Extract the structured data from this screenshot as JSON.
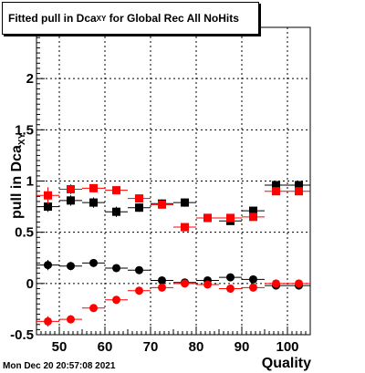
{
  "title_prefix": "Fitted pull in Dca",
  "title_sub": "XY",
  "title_suffix": " for Global Rec All NoHits",
  "timestamp": "Mon Dec 20 20:57:08 2021",
  "chart_data": {
    "type": "scatter",
    "xlabel": "Quality",
    "ylabel_main": "pull in Dca",
    "ylabel_sub": "XY",
    "xlim": [
      45,
      105
    ],
    "ylim": [
      -0.5,
      2.5
    ],
    "x_ticks": [
      50,
      60,
      70,
      80,
      90,
      100
    ],
    "y_ticks": [
      -0.5,
      0,
      0.5,
      1,
      1.5,
      2
    ],
    "y_tick_labels": [
      "-0.5",
      "0",
      "0.5",
      "1",
      "1.5",
      "2"
    ],
    "grid": true,
    "series": [
      {
        "marker": "square",
        "color": "#000000",
        "x": [
          47.5,
          52.5,
          57.5,
          62.5,
          67.5,
          72.5,
          77.5,
          82.5,
          87.5,
          92.5,
          97.5,
          102.5
        ],
        "y": [
          0.75,
          0.81,
          0.79,
          0.7,
          0.74,
          0.78,
          0.79,
          0.64,
          0.61,
          0.71,
          0.96,
          0.96
        ],
        "yerr": [
          0.05,
          0.05,
          0.05,
          0.05,
          0.04,
          0.04,
          0.04,
          0.02,
          0.02,
          0.02,
          0.01,
          0.01
        ]
      },
      {
        "marker": "square",
        "color": "#ff0000",
        "x": [
          47.5,
          52.5,
          57.5,
          62.5,
          67.5,
          72.5,
          77.5,
          82.5,
          87.5,
          92.5,
          97.5,
          102.5
        ],
        "y": [
          0.86,
          0.92,
          0.93,
          0.91,
          0.83,
          0.77,
          0.55,
          0.64,
          0.64,
          0.65,
          0.9,
          0.9
        ],
        "yerr": [
          0.08,
          0.05,
          0.04,
          0.04,
          0.03,
          0.03,
          0.02,
          0.02,
          0.02,
          0.02,
          0.01,
          0.01
        ]
      },
      {
        "marker": "circle",
        "color": "#000000",
        "x": [
          47.5,
          52.5,
          57.5,
          62.5,
          67.5,
          72.5,
          77.5,
          82.5,
          87.5,
          92.5,
          97.5,
          102.5
        ],
        "y": [
          0.18,
          0.17,
          0.2,
          0.15,
          0.13,
          0.03,
          0.01,
          0.03,
          0.06,
          0.04,
          -0.02,
          -0.02
        ],
        "yerr": [
          0.05,
          0.04,
          0.03,
          0.02,
          0.02,
          0.02,
          0.02,
          0.02,
          0.02,
          0.02,
          0.01,
          0.01
        ]
      },
      {
        "marker": "circle",
        "color": "#ff0000",
        "x": [
          47.5,
          52.5,
          57.5,
          62.5,
          67.5,
          72.5,
          77.5,
          82.5,
          87.5,
          92.5,
          97.5,
          102.5
        ],
        "y": [
          -0.37,
          -0.35,
          -0.24,
          -0.16,
          -0.07,
          -0.04,
          0.0,
          -0.01,
          -0.05,
          -0.04,
          0.0,
          0.0
        ],
        "yerr": [
          0.05,
          0.04,
          0.03,
          0.02,
          0.02,
          0.02,
          0.02,
          0.02,
          0.02,
          0.02,
          0.01,
          0.01
        ]
      }
    ]
  }
}
